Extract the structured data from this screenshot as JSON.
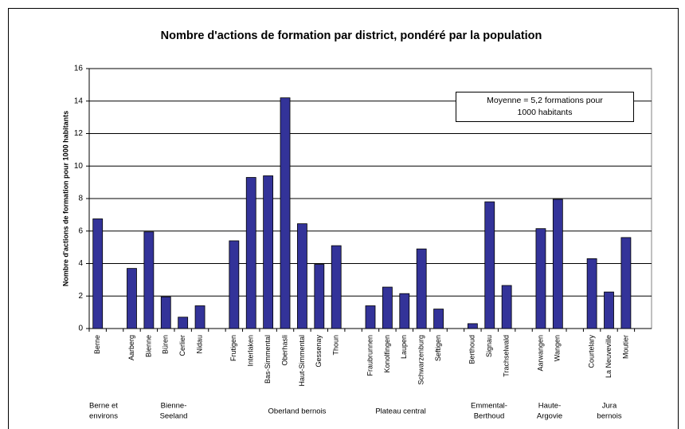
{
  "chart_data": {
    "type": "bar",
    "title": "Nombre  d'actions de formation par district, pondéré par la population",
    "y_label": "Nombre d'actions de formation pour 1000 habitants",
    "categories": [
      "Berne",
      null,
      "Aarberg",
      "Bienne",
      "Büren",
      "Cerlier",
      "Nidau",
      null,
      "Frutigen",
      "Interlaken",
      "Bas-Simmental",
      "Oberhasli",
      "Haut-Simmental",
      "Gessenay",
      "Thoun",
      null,
      "Fraubrunnen",
      "Konolfingen",
      "Laupen",
      "Schwarzenburg",
      "Seftigen",
      null,
      "Berthoud",
      "Signau",
      "Trachselwald",
      null,
      "Aarwangen",
      "Wangen",
      null,
      "Courtelary",
      "La Neuveville",
      "Moutier",
      null
    ],
    "values": [
      6.75,
      null,
      3.7,
      5.95,
      1.95,
      0.7,
      1.4,
      null,
      5.4,
      9.3,
      9.4,
      14.2,
      6.45,
      3.95,
      5.1,
      null,
      1.4,
      2.55,
      2.15,
      4.9,
      1.2,
      null,
      0.3,
      7.8,
      2.65,
      null,
      6.15,
      7.95,
      null,
      4.3,
      2.25,
      5.6,
      null
    ],
    "color": "#333399",
    "ylim": [
      0,
      16
    ],
    "yticks": [
      0,
      2,
      4,
      6,
      8,
      10,
      12,
      14,
      16
    ],
    "grid": true,
    "groups": [
      {
        "lines": [
          "Berne et",
          "environs"
        ]
      },
      {
        "lines": [
          "Bienne-",
          "Seeland"
        ]
      },
      {
        "lines": [
          "Oberland bernois"
        ]
      },
      {
        "lines": [
          "Plateau central"
        ]
      },
      {
        "lines": [
          "Emmental-",
          "Berthoud"
        ]
      },
      {
        "lines": [
          "Haute-",
          "Argovie"
        ]
      },
      {
        "lines": [
          "Jura",
          "bernois"
        ]
      }
    ],
    "annotation": {
      "lines": [
        "Moyenne = 5,2 formations pour",
        "1000 habitants"
      ]
    }
  }
}
